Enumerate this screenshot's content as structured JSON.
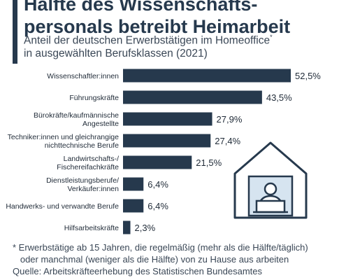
{
  "header": {
    "title": "Hälfte des Wissenschafts-\npersonals betreibt Heimarbeit",
    "title_line1": "Hälfte des Wissenschafts-",
    "title_line2": "personals betreibt Heimarbeit",
    "subtitle_line1": "Anteil der deutschen Erwerbstätigen im Homeoffice",
    "subtitle_marker": "*",
    "subtitle_line2": "in ausgewählten Berufsklassen (2021)"
  },
  "chart_data": {
    "type": "bar",
    "orientation": "horizontal",
    "categories": [
      [
        "Wissenschaftler:innen"
      ],
      [
        "Führungskräfte"
      ],
      [
        "Bürokräfte/kaufmännische",
        "Angestellte"
      ],
      [
        "Techniker:innen und gleichrangige",
        "nichttechnische Berufe"
      ],
      [
        "Landwirtschafts-/",
        "Fischereifachkräfte"
      ],
      [
        "Dienstleistungsberufe/",
        "Verkäufer:innen"
      ],
      [
        "Handwerks- und verwandte Berufe"
      ],
      [
        "Hilfsarbeitskräfte"
      ]
    ],
    "values": [
      52.5,
      43.5,
      27.9,
      27.4,
      21.5,
      6.4,
      6.4,
      2.3
    ],
    "value_labels": [
      "52,5%",
      "43,5%",
      "27,9%",
      "27,4%",
      "21,5%",
      "6,4%",
      "6,4%",
      "2,3%"
    ],
    "unit": "%",
    "xlim": [
      0,
      52.5
    ],
    "grid": false,
    "bar_color": "#26394d"
  },
  "footnote": {
    "line1": "* Erwerbstätige ab 15 Jahren, die regelmäßig (mehr als die Hälfte/täglich)",
    "line2": "   oder manchmal (weniger als die Hälfte) von zu Hause aus arbeiten",
    "source": "Quelle: Arbeitskräfteerhebung des Statistischen Bundesamtes"
  },
  "illustration": {
    "icon": "home-office-icon",
    "line_color": "#26394d",
    "fill_color": "#d6e4f0"
  }
}
